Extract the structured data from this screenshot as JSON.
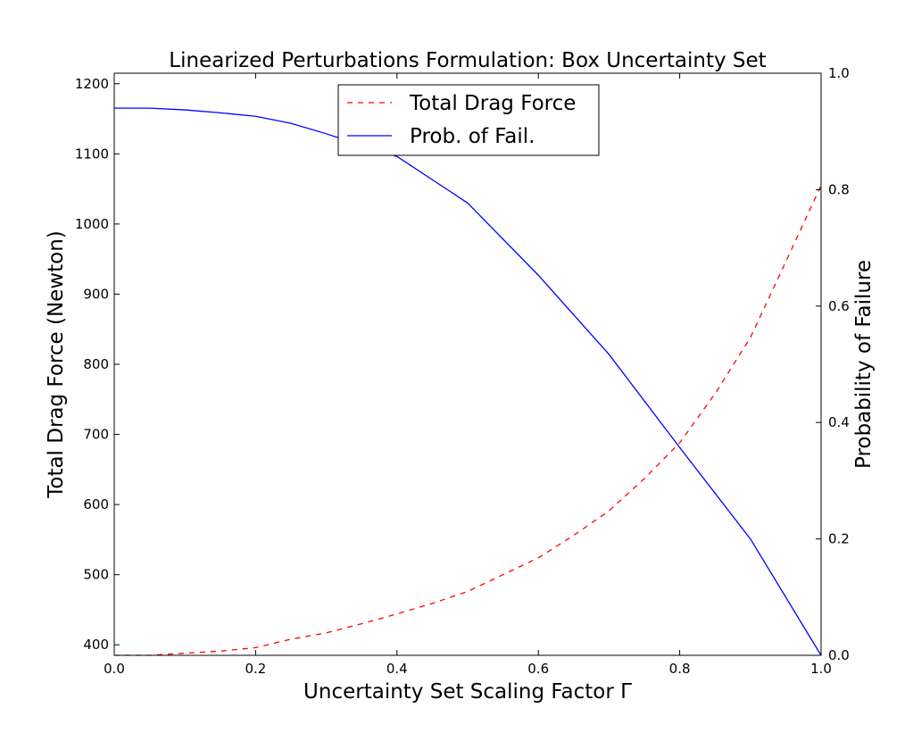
{
  "chart_data": {
    "type": "line",
    "title": "Linearized Perturbations Formulation: Box Uncertainty Set",
    "xlabel": "Uncertainty Set Scaling Factor Γ",
    "ylabel_left": "Total Drag Force  (Newton)",
    "ylabel_right": "Probability of Failure",
    "xlim": [
      0.0,
      1.0
    ],
    "ylim_left": [
      385,
      1215
    ],
    "ylim_right": [
      0.0,
      1.0
    ],
    "x_ticks": [
      "0.0",
      "0.2",
      "0.4",
      "0.6",
      "0.8",
      "1.0"
    ],
    "y_left_ticks": [
      "400",
      "500",
      "600",
      "700",
      "800",
      "900",
      "1000",
      "1100",
      "1200"
    ],
    "y_right_ticks": [
      "0.0",
      "0.2",
      "0.4",
      "0.6",
      "0.8",
      "1.0"
    ],
    "grid": false,
    "legend_position": "top-center",
    "series": [
      {
        "name": "Total Drag Force",
        "axis": "left",
        "color": "#ff0000",
        "style": "dashed",
        "x": [
          0.0,
          0.05,
          0.1,
          0.15,
          0.2,
          0.25,
          0.3,
          0.35,
          0.4,
          0.45,
          0.5,
          0.55,
          0.6,
          0.65,
          0.7,
          0.75,
          0.8,
          0.85,
          0.9,
          0.95,
          1.0
        ],
        "y": [
          385,
          385,
          388,
          391,
          396,
          408,
          417,
          430,
          444,
          459,
          476,
          500,
          524,
          556,
          591,
          637,
          688,
          758,
          838,
          946,
          1055
        ]
      },
      {
        "name": "Prob. of Fail.",
        "axis": "right",
        "color": "#0000ff",
        "style": "solid",
        "x": [
          0.0,
          0.05,
          0.1,
          0.15,
          0.2,
          0.25,
          0.3,
          0.35,
          0.4,
          0.5,
          0.6,
          0.7,
          0.8,
          0.9,
          1.0
        ],
        "y": [
          0.94,
          0.94,
          0.937,
          0.932,
          0.926,
          0.914,
          0.896,
          0.876,
          0.857,
          0.777,
          0.653,
          0.517,
          0.357,
          0.2,
          0.0
        ]
      }
    ]
  }
}
